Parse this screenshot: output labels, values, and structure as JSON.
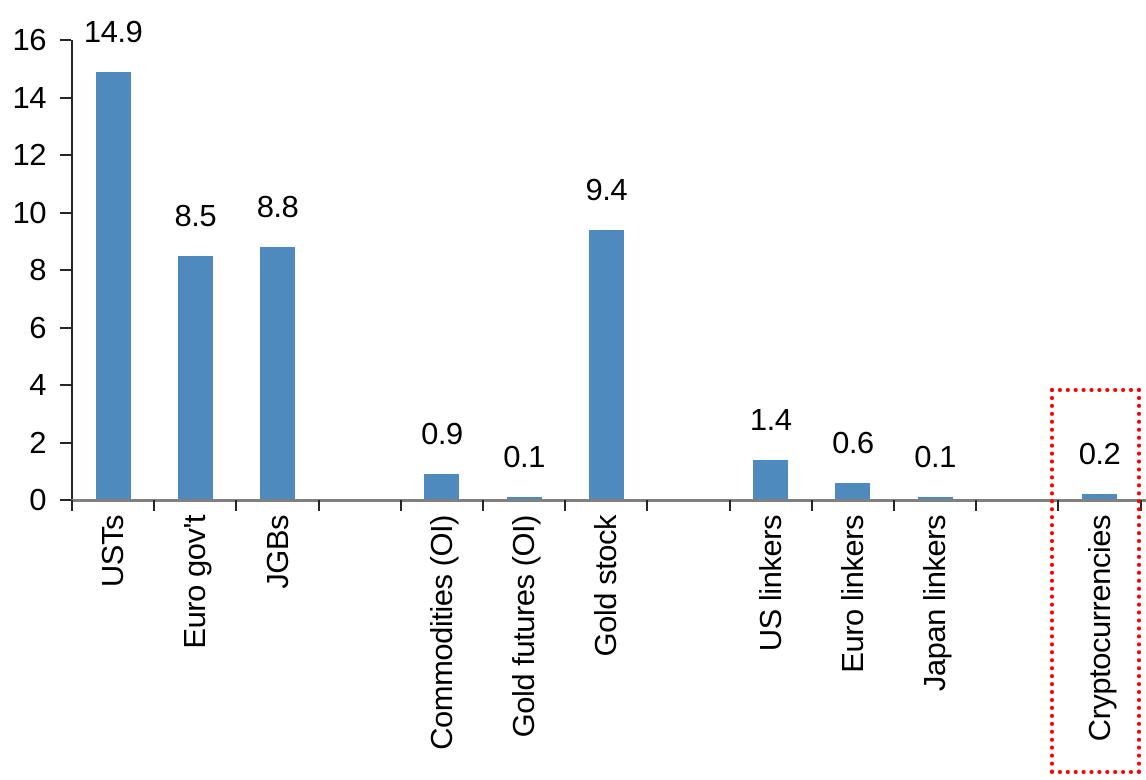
{
  "chart_data": {
    "type": "bar",
    "title": "",
    "xlabel": "",
    "ylabel": "",
    "categories": [
      "USTs",
      "Euro gov't",
      "JGBs",
      null,
      "Commodities (OI)",
      "Gold futures (OI)",
      "Gold stock",
      null,
      "US linkers",
      "Euro linkers",
      "Japan linkers",
      null,
      "Cryptocurrencies"
    ],
    "values": [
      14.9,
      8.5,
      8.8,
      null,
      0.9,
      0.1,
      9.4,
      null,
      1.4,
      0.6,
      0.1,
      null,
      0.2
    ],
    "value_labels": [
      "14.9",
      "8.5",
      "8.8",
      null,
      "0.9",
      "0.1",
      "9.4",
      null,
      "1.4",
      "0.6",
      "0.1",
      null,
      "0.2"
    ],
    "ylim": [
      0,
      16
    ],
    "yticks": [
      0,
      2,
      4,
      6,
      8,
      10,
      12,
      14,
      16
    ],
    "grid": false,
    "legend": null,
    "bar_color": "#4E8ABE",
    "axis_tick_color": "#262626",
    "baseline_color": "#808080",
    "label_color": "#000000",
    "highlight": {
      "category": "Cryptocurrencies",
      "type": "red-dotted-box",
      "color": "#FF0000"
    }
  }
}
